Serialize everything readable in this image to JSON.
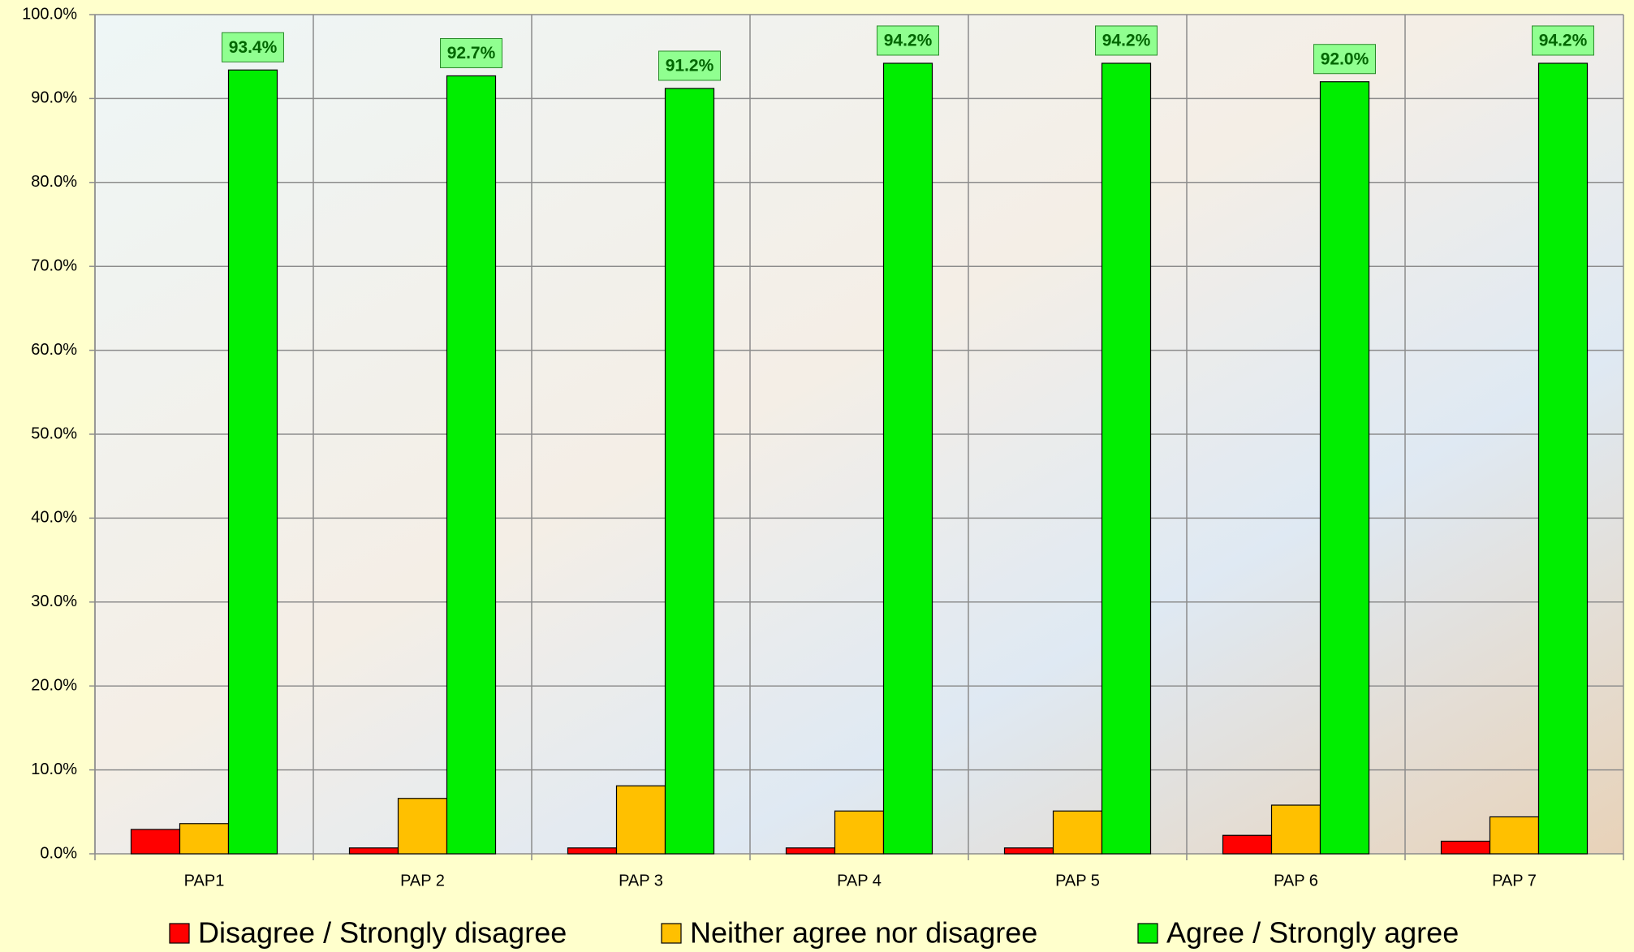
{
  "chart_data": {
    "type": "bar",
    "categories": [
      "PAP1",
      "PAP 2",
      "PAP 3",
      "PAP 4",
      "PAP 5",
      "PAP 6",
      "PAP 7"
    ],
    "series": [
      {
        "name": "Disagree / Strongly disagree",
        "color": "#ff0000",
        "values": [
          2.9,
          0.7,
          0.7,
          0.7,
          0.7,
          2.2,
          1.5
        ]
      },
      {
        "name": "Neither agree nor disagree",
        "color": "#ffc000",
        "values": [
          3.6,
          6.6,
          8.1,
          5.1,
          5.1,
          5.8,
          4.4
        ]
      },
      {
        "name": "Agree /  Strongly agree",
        "color": "#00ee00",
        "values": [
          93.4,
          92.7,
          91.2,
          94.2,
          94.2,
          92.0,
          94.2
        ],
        "value_labels": [
          "93.4%",
          "92.7%",
          "91.2%",
          "94.2%",
          "94.2%",
          "92.0%",
          "94.2%"
        ]
      }
    ],
    "ylim": [
      0,
      100
    ],
    "yticks": [
      {
        "value": 0,
        "label": "0.0%"
      },
      {
        "value": 10,
        "label": "10.0%"
      },
      {
        "value": 20,
        "label": "20.0%"
      },
      {
        "value": 30,
        "label": "30.0%"
      },
      {
        "value": 40,
        "label": "40.0%"
      },
      {
        "value": 50,
        "label": "50.0%"
      },
      {
        "value": 60,
        "label": "60.0%"
      },
      {
        "value": 70,
        "label": "70.0%"
      },
      {
        "value": 80,
        "label": "80.0%"
      },
      {
        "value": 90,
        "label": "90.0%"
      },
      {
        "value": 100,
        "label": "100.0%"
      }
    ],
    "grid": true,
    "legend": "bottom"
  }
}
